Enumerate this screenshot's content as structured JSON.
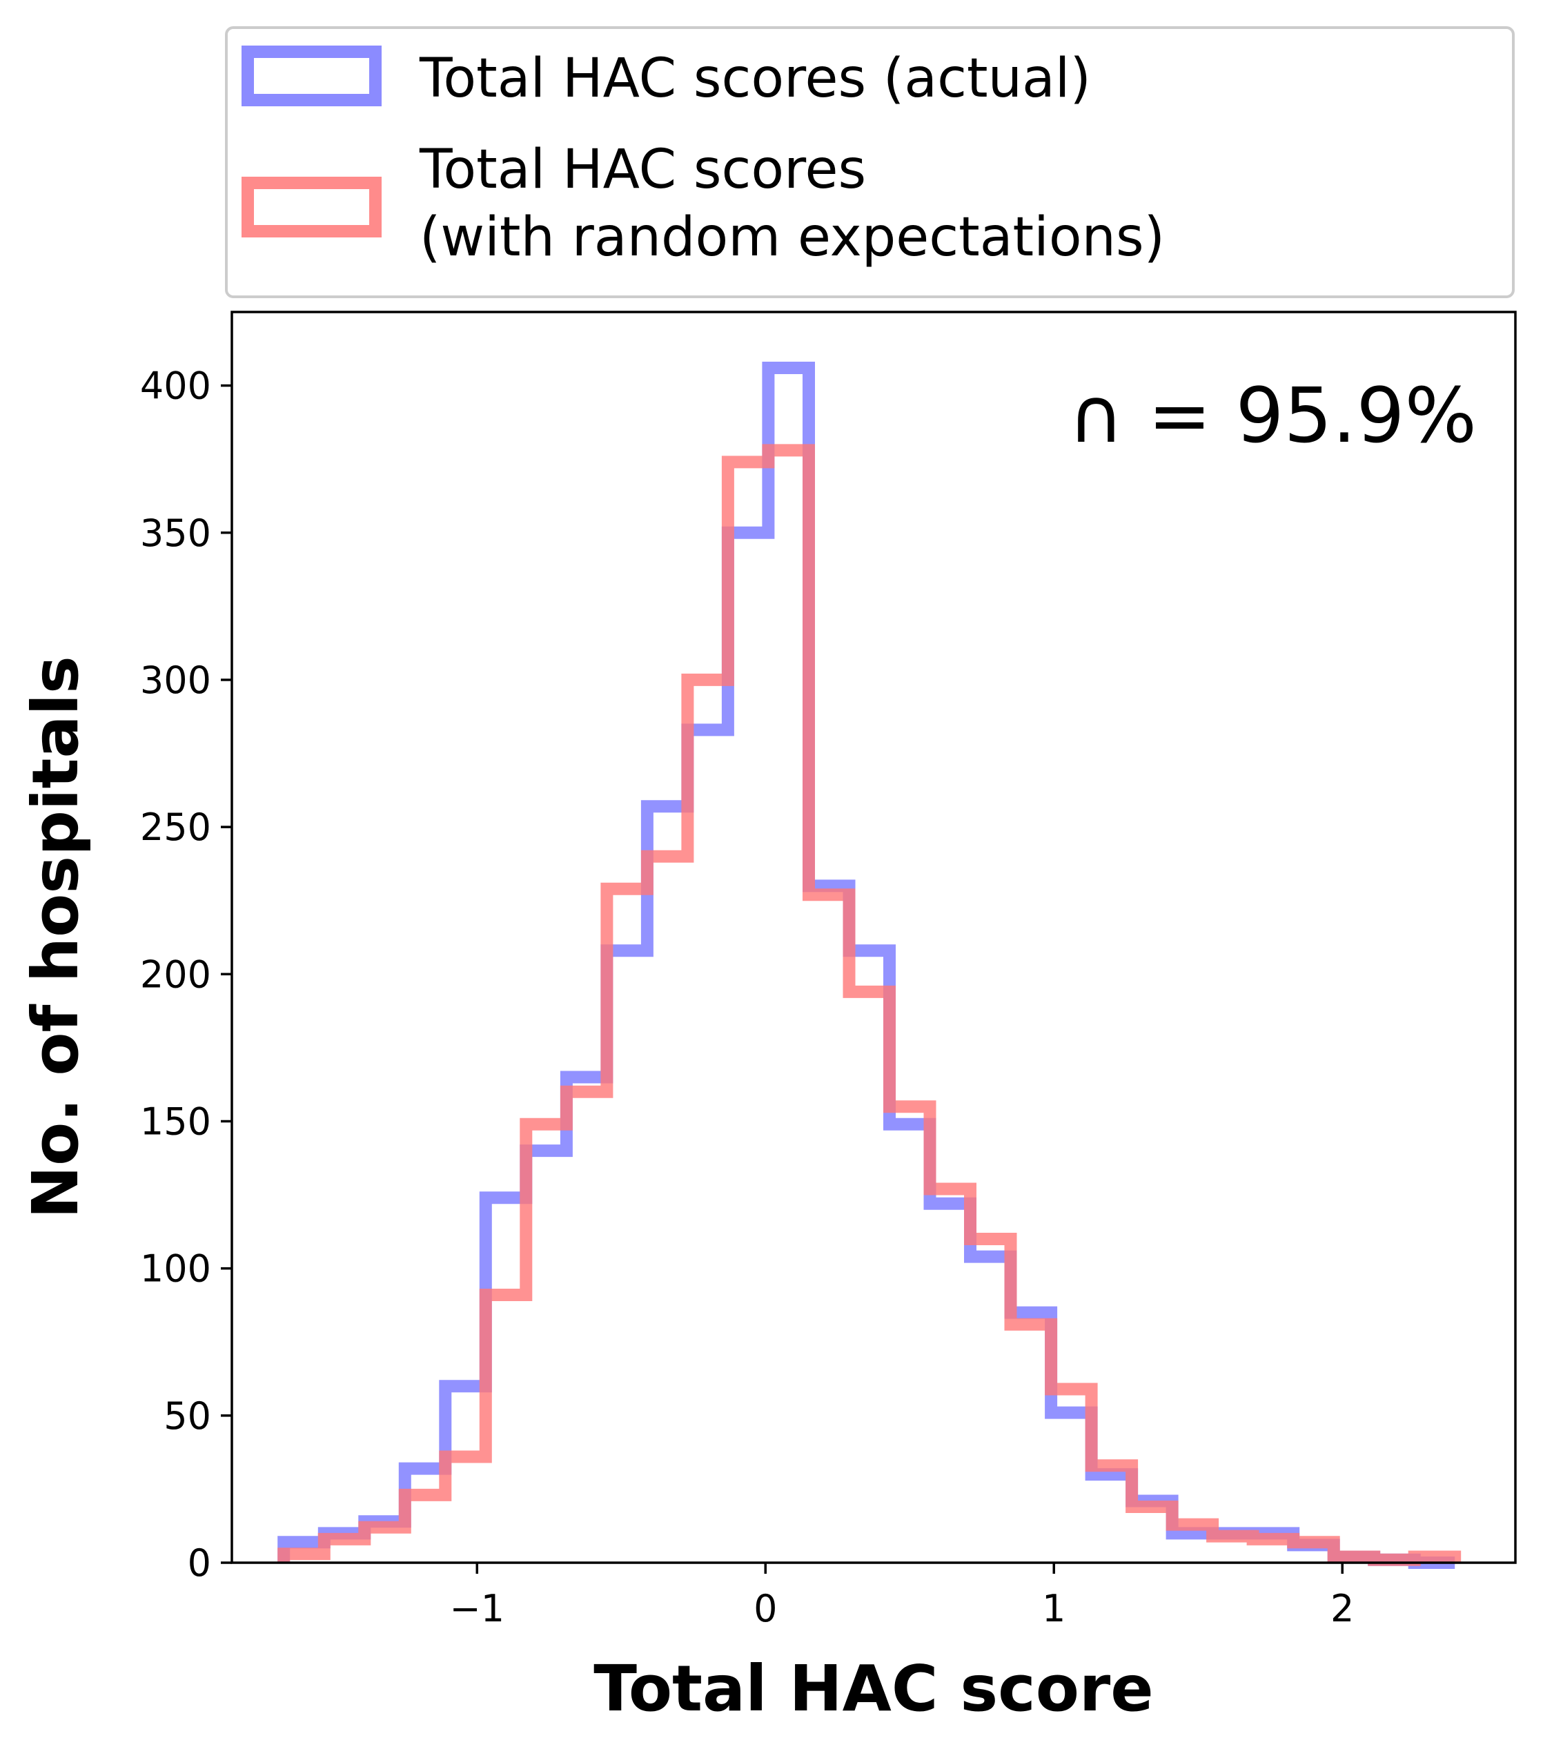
{
  "chart_data": {
    "type": "histogram-step",
    "xlabel": "Total HAC score",
    "ylabel": "No. of hospitals",
    "xlim": [
      -1.85,
      2.6
    ],
    "ylim": [
      0,
      425
    ],
    "x_ticks": [
      -1,
      0,
      1,
      2
    ],
    "x_tick_labels": [
      "−1",
      "0",
      "1",
      "2"
    ],
    "y_ticks": [
      0,
      50,
      100,
      150,
      200,
      250,
      300,
      350,
      400
    ],
    "y_tick_labels": [
      "0",
      "50",
      "100",
      "150",
      "200",
      "250",
      "300",
      "350",
      "400"
    ],
    "annotation": "∩ = 95.9%",
    "legend_position": "above plot",
    "series": [
      {
        "name": "Total HAC scores (actual)",
        "color": "#7777ff",
        "bin_edges": [
          -1.67,
          -1.53,
          -1.39,
          -1.25,
          -1.11,
          -0.97,
          -0.83,
          -0.69,
          -0.55,
          -0.41,
          -0.27,
          -0.13,
          0.01,
          0.15,
          0.29,
          0.43,
          0.57,
          0.71,
          0.85,
          0.99,
          1.13,
          1.27,
          1.41,
          1.55,
          1.69,
          1.83,
          1.97,
          2.11,
          2.25,
          2.39
        ],
        "counts": [
          7,
          10,
          14,
          32,
          60,
          124,
          140,
          165,
          208,
          257,
          283,
          350,
          406,
          230,
          208,
          149,
          122,
          104,
          85,
          51,
          30,
          21,
          10,
          10,
          10,
          6,
          2,
          1,
          0
        ]
      },
      {
        "name": "Total HAC scores\n(with random expectations)",
        "color": "#ff7777",
        "bin_edges": [
          -1.67,
          -1.53,
          -1.39,
          -1.25,
          -1.11,
          -0.97,
          -0.83,
          -0.69,
          -0.55,
          -0.41,
          -0.27,
          -0.13,
          0.01,
          0.15,
          0.29,
          0.43,
          0.57,
          0.71,
          0.85,
          0.99,
          1.13,
          1.27,
          1.41,
          1.55,
          1.69,
          1.83,
          1.97,
          2.11,
          2.25,
          2.39
        ],
        "counts": [
          3,
          8,
          12,
          23,
          36,
          91,
          149,
          160,
          229,
          240,
          300,
          374,
          378,
          227,
          194,
          155,
          127,
          110,
          81,
          59,
          33,
          19,
          13,
          9,
          8,
          7,
          2,
          1,
          2
        ]
      }
    ]
  }
}
